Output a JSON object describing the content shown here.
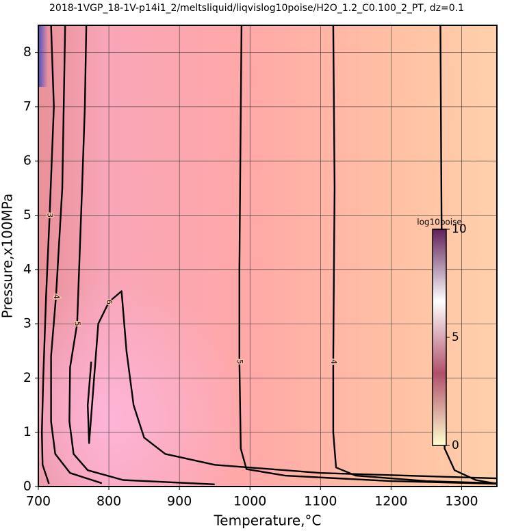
{
  "chart_data": {
    "type": "contour",
    "title": "2018-1VGP_18-1V-p14i1_2/meltsliquid/liqvislog10poise/H2O_1.2_C0.100_2_PT, dz=0.1",
    "x_label": "Temperature,°C",
    "y_label": "Pressure,x100MPa",
    "xlim": [
      700,
      1350
    ],
    "ylim": [
      0,
      8.5
    ],
    "xticks": [
      700,
      800,
      900,
      1000,
      1100,
      1200,
      1300
    ],
    "yticks": [
      0,
      1,
      2,
      3,
      4,
      5,
      6,
      7,
      8
    ],
    "grid": true,
    "contours": [
      {
        "level": 3,
        "x": [
          1270,
          1271,
          1272,
          1273,
          1276,
          1290,
          1320,
          1350
        ],
        "y": [
          8.5,
          6,
          4,
          2,
          0.7,
          0.3,
          0.12,
          0.05
        ]
      },
      {
        "level": 4,
        "x": [
          1118,
          1120,
          1119,
          1118,
          1118,
          1122,
          1150,
          1250,
          1350
        ],
        "y": [
          8.5,
          5.5,
          4,
          2.3,
          1,
          0.35,
          0.2,
          0.1,
          0.06
        ]
      },
      {
        "level": 5,
        "x": [
          988,
          986,
          985,
          985,
          987,
          995,
          1050,
          1200,
          1350
        ],
        "y": [
          8.5,
          5.5,
          4,
          2.3,
          0.7,
          0.32,
          0.2,
          0.1,
          0.05
        ]
      },
      {
        "level": 6,
        "x": [
          775,
          770,
          772,
          785,
          800,
          818,
          825,
          835,
          850,
          880,
          950,
          1100,
          1350
        ],
        "y": [
          2.3,
          1.5,
          0.8,
          3.0,
          3.4,
          3.6,
          2.5,
          1.5,
          0.9,
          0.6,
          0.4,
          0.25,
          0.15
        ]
      },
      {
        "level": 5,
        "x": [
          768,
          766,
          762,
          755,
          745,
          744,
          750,
          770,
          820,
          950
        ],
        "y": [
          8.5,
          7,
          5.5,
          3,
          2.2,
          1.2,
          0.6,
          0.3,
          0.12,
          0.04
        ]
      },
      {
        "level": 4,
        "x": [
          738,
          736,
          734,
          725,
          718,
          718,
          724,
          745,
          790
        ],
        "y": [
          8.5,
          7,
          5.5,
          3.5,
          2.4,
          1.2,
          0.6,
          0.25,
          0.06
        ]
      },
      {
        "level": 3,
        "x": [
          718,
          722,
          716,
          711,
          707,
          705,
          706,
          715
        ],
        "y": [
          8.5,
          7,
          5,
          3.5,
          2,
          1,
          0.4,
          0.05
        ]
      }
    ],
    "colorbar": {
      "title": "log10poise",
      "lim": [
        0,
        10
      ],
      "ticks": [
        0,
        5,
        10
      ],
      "colors": [
        "#ffffd0",
        "#b0506a",
        "#ffffff",
        "#60205a"
      ]
    }
  }
}
